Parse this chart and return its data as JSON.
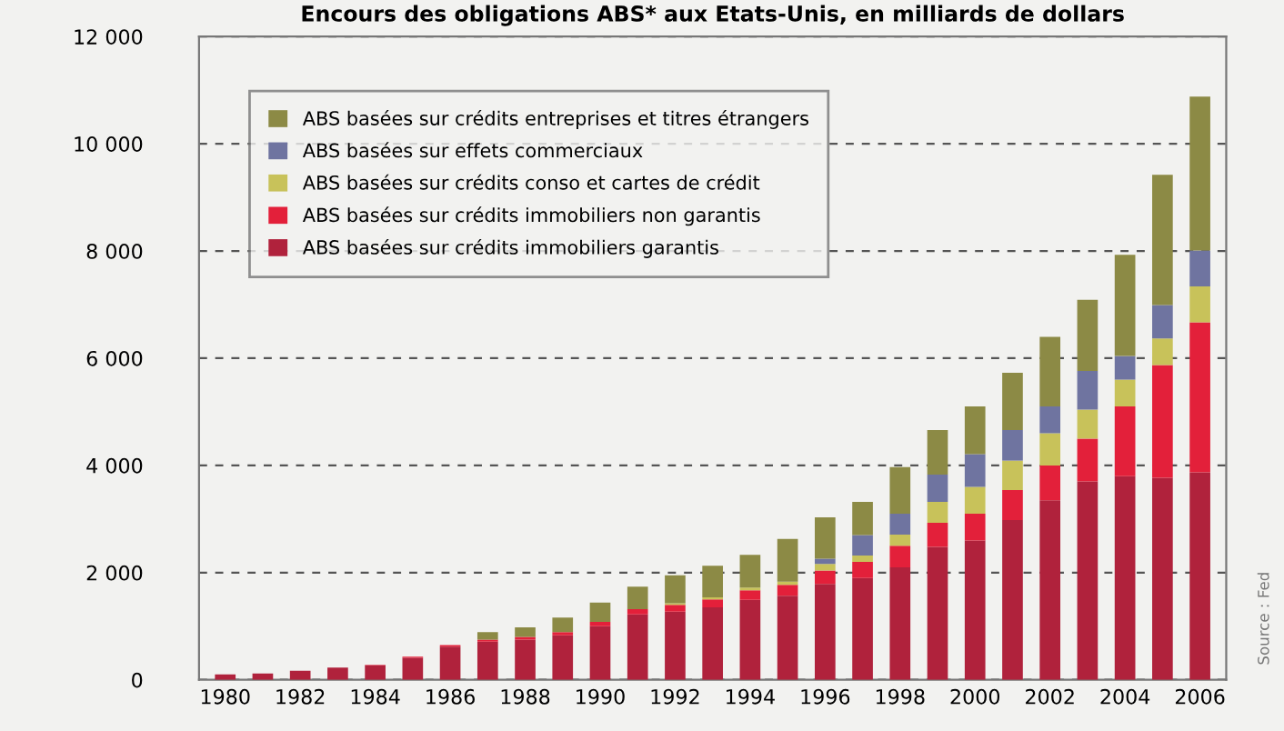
{
  "chart_data": {
    "type": "bar",
    "stacked": true,
    "title": "Encours des obligations ABS* aux Etats-Unis, en milliards de dollars",
    "categories": [
      "1980",
      null,
      "1982",
      null,
      "1984",
      null,
      "1986",
      null,
      "1988",
      null,
      "1990",
      null,
      "1992",
      null,
      "1994",
      null,
      "1996",
      null,
      "1998",
      null,
      "2000",
      null,
      "2002",
      null,
      "2004",
      null,
      "2006"
    ],
    "series": [
      {
        "name": "ABS basées sur crédits immobiliers garantis",
        "color": "#b0223c",
        "values": [
          100,
          120,
          170,
          230,
          270,
          410,
          620,
          710,
          750,
          830,
          1000,
          1220,
          1270,
          1350,
          1490,
          1570,
          1790,
          1900,
          2100,
          2480,
          2600,
          2980,
          3350,
          3700,
          3800,
          3770,
          3870
        ]
      },
      {
        "name": "ABS basées sur crédits immobiliers non garantis",
        "color": "#e3203a",
        "values": [
          0,
          0,
          0,
          0,
          10,
          20,
          30,
          40,
          50,
          60,
          80,
          100,
          130,
          150,
          180,
          200,
          250,
          300,
          400,
          450,
          500,
          560,
          650,
          800,
          1300,
          2100,
          2800
        ]
      },
      {
        "name": "ABS basées sur crédits conso et cartes de crédit",
        "color": "#c8c25a",
        "values": [
          0,
          0,
          0,
          0,
          0,
          0,
          0,
          0,
          0,
          0,
          0,
          0,
          30,
          40,
          50,
          60,
          120,
          120,
          210,
          390,
          500,
          550,
          600,
          540,
          500,
          500,
          670
        ]
      },
      {
        "name": "ABS basées sur effets commerciaux",
        "color": "#6f74a0",
        "values": [
          0,
          0,
          0,
          0,
          0,
          0,
          0,
          0,
          0,
          0,
          0,
          0,
          0,
          0,
          0,
          0,
          100,
          380,
          390,
          510,
          610,
          570,
          500,
          720,
          440,
          620,
          670
        ]
      },
      {
        "name": "ABS basées sur crédits entreprises et titres étrangers",
        "color": "#8c8a45",
        "values": [
          0,
          0,
          0,
          0,
          0,
          0,
          0,
          140,
          180,
          270,
          360,
          420,
          520,
          590,
          610,
          800,
          770,
          620,
          870,
          830,
          890,
          1070,
          1300,
          1330,
          1890,
          2430,
          2870
        ]
      }
    ],
    "ylim": [
      0,
      12000
    ],
    "yticks": [
      {
        "value": 0,
        "label": "0"
      },
      {
        "value": 2000,
        "label": "2 000"
      },
      {
        "value": 4000,
        "label": "4 000"
      },
      {
        "value": 6000,
        "label": "6 000"
      },
      {
        "value": 8000,
        "label": "8 000"
      },
      {
        "value": 10000,
        "label": "10 000"
      },
      {
        "value": 12000,
        "label": "12 000"
      }
    ],
    "grid": "y",
    "legend": "top left",
    "annotations": [
      "Source : Fed"
    ]
  }
}
